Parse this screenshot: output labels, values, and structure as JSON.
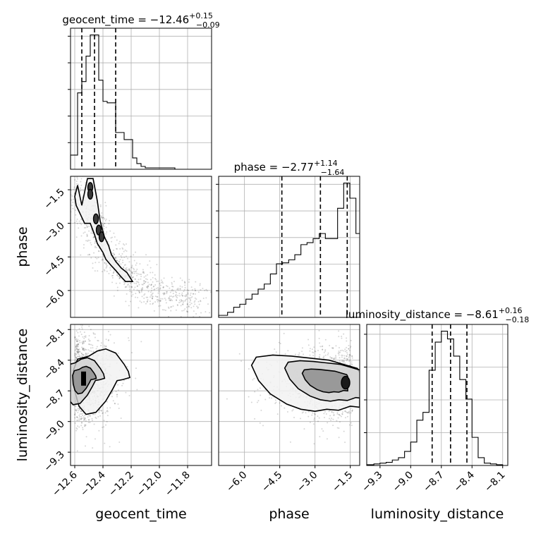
{
  "chart_data": [
    {
      "type": "histogram",
      "panel": "geocent_time",
      "title_main": "geocent_time = −12.46",
      "title_sup": "+0.15",
      "title_sub": "−0.09",
      "xlim": [
        -12.63,
        -11.63
      ],
      "xticks": [
        -12.6,
        -12.4,
        -12.2,
        -12.0,
        -11.8
      ],
      "quantiles": [
        -12.55,
        -12.46,
        -12.31
      ],
      "bin_edges": [
        -12.63,
        -12.58,
        -12.55,
        -12.52,
        -12.49,
        -12.46,
        -12.43,
        -12.4,
        -12.37,
        -12.34,
        -12.31,
        -12.28,
        -12.25,
        -12.22,
        -12.19,
        -12.16,
        -12.13,
        -12.1,
        -12.07,
        -12.04,
        -12.01,
        -11.98,
        -11.95,
        -11.92,
        -11.89,
        -11.86,
        -11.83
      ],
      "counts": [
        10,
        54,
        62,
        80,
        95,
        95,
        63,
        48,
        47,
        47,
        26,
        26,
        21,
        21,
        8,
        4,
        2,
        1,
        1,
        1,
        1,
        1,
        1,
        1,
        0,
        0
      ]
    },
    {
      "type": "scatter_contour",
      "panel": "phase_vs_geocent_time",
      "xlim": [
        -12.63,
        -11.63
      ],
      "ylim": [
        -7.2,
        -0.9
      ],
      "yticks": [
        -1.5,
        -3.0,
        -4.5,
        -6.0
      ],
      "ylabel": "phase",
      "ridge_x": [
        -12.58,
        -12.55,
        -12.5,
        -12.46,
        -12.42,
        -12.38,
        -12.33,
        -12.28,
        -12.24,
        -12.18,
        -12.1,
        -12.0,
        -11.9,
        -11.8,
        -11.7
      ],
      "ridge_y": [
        -1.4,
        -1.9,
        -2.5,
        -3.0,
        -3.6,
        -4.1,
        -4.6,
        -5.0,
        -5.3,
        -5.6,
        -5.9,
        -6.1,
        -6.3,
        -6.4,
        -6.5
      ],
      "high_density_x": [
        -12.49,
        -12.49,
        -12.45,
        -12.43,
        -12.41
      ],
      "high_density_y": [
        -1.4,
        -1.7,
        -2.8,
        -3.3,
        -3.6
      ],
      "contour_x": [
        -12.47,
        -12.44,
        -12.42,
        -12.39,
        -12.36,
        -12.34,
        -12.31,
        -12.27,
        -12.23,
        -12.19,
        -12.24,
        -12.27,
        -12.31,
        -12.34,
        -12.38,
        -12.4,
        -12.44,
        -12.46,
        -12.49,
        -12.53,
        -12.56,
        -12.59,
        -12.6,
        -12.58,
        -12.55,
        -12.51
      ],
      "contour_y": [
        -1.0,
        -2.0,
        -2.9,
        -3.6,
        -4.0,
        -4.4,
        -4.7,
        -5.0,
        -5.2,
        -5.6,
        -5.6,
        -5.4,
        -5.1,
        -4.9,
        -4.6,
        -4.3,
        -3.9,
        -3.5,
        -3.0,
        -3.0,
        -2.6,
        -2.2,
        -1.8,
        -1.3,
        -2.2,
        -1.0
      ]
    },
    {
      "type": "histogram",
      "panel": "phase",
      "title_main": "phase = −2.77",
      "title_sup": "+1.14",
      "title_sub": "−1.64",
      "xlim": [
        -7.1,
        -1.1
      ],
      "xticks": [
        -6.0,
        -4.5,
        -3.0,
        -1.5
      ],
      "quantiles": [
        -4.41,
        -2.77,
        -1.63
      ],
      "bin_edges": [
        -7.1,
        -6.72,
        -6.46,
        -6.2,
        -5.94,
        -5.68,
        -5.42,
        -5.16,
        -4.9,
        -4.64,
        -4.38,
        -4.12,
        -3.86,
        -3.6,
        -3.34,
        -3.08,
        -2.82,
        -2.56,
        -2.3,
        -2.04,
        -1.78,
        -1.52,
        -1.26,
        -1.1
      ],
      "counts": [
        2,
        5,
        10,
        13,
        18,
        23,
        28,
        33,
        43,
        53,
        54,
        57,
        62,
        72,
        74,
        78,
        83,
        78,
        78,
        108,
        133,
        118,
        83
      ]
    },
    {
      "type": "scatter_contour",
      "panel": "luminosity_distance_vs_geocent_time",
      "xlim": [
        -12.63,
        -11.63
      ],
      "ylim": [
        -9.43,
        -8.05
      ],
      "xticks": [
        -12.6,
        -12.4,
        -12.2,
        -12.0,
        -11.8
      ],
      "yticks": [
        -8.1,
        -8.4,
        -8.7,
        -9.0,
        -9.3
      ],
      "xlabel": "geocent_time",
      "ylabel": "luminosity_distance",
      "center": [
        -12.56,
        -8.58
      ],
      "spread": [
        0.12,
        0.22
      ],
      "contour_x": [
        -12.58,
        -12.5,
        -12.44,
        -12.38,
        -12.31,
        -12.25,
        -12.22,
        -12.21,
        -12.26,
        -12.3,
        -12.33,
        -12.38,
        -12.45,
        -12.52,
        -12.57,
        -12.6,
        -12.61
      ],
      "contour_y": [
        -8.39,
        -8.36,
        -8.31,
        -8.29,
        -8.33,
        -8.44,
        -8.51,
        -8.57,
        -8.59,
        -8.6,
        -8.68,
        -8.8,
        -8.91,
        -8.93,
        -8.85,
        -8.7,
        -8.5
      ]
    },
    {
      "type": "scatter_contour",
      "panel": "luminosity_distance_vs_phase",
      "xlim": [
        -7.1,
        -1.1
      ],
      "ylim": [
        -9.43,
        -8.05
      ],
      "xticks": [
        -6.0,
        -4.5,
        -3.0,
        -1.5
      ],
      "xlabel": "phase",
      "center": [
        -1.7,
        -8.62
      ],
      "spread": [
        1.6,
        0.17
      ],
      "contour_x": [
        -5.5,
        -4.8,
        -4.0,
        -3.2,
        -2.4,
        -1.8,
        -1.2,
        -1.1,
        -1.1,
        -1.5,
        -2.0,
        -2.5,
        -3.0,
        -3.6,
        -4.2,
        -4.9,
        -5.4,
        -5.7
      ],
      "contour_y": [
        -8.37,
        -8.35,
        -8.36,
        -8.38,
        -8.4,
        -8.44,
        -8.48,
        -8.52,
        -8.86,
        -8.85,
        -8.89,
        -8.88,
        -8.9,
        -8.88,
        -8.83,
        -8.73,
        -8.6,
        -8.45
      ]
    },
    {
      "type": "histogram",
      "panel": "luminosity_distance",
      "title_main": "luminosity_distance = −8.61",
      "title_sup": "+0.16",
      "title_sub": "−0.18",
      "xlim": [
        -9.43,
        -8.05
      ],
      "xticks": [
        -9.3,
        -9.0,
        -8.7,
        -8.4,
        -8.1
      ],
      "xlabel": "luminosity_distance",
      "quantiles": [
        -8.79,
        -8.61,
        -8.45
      ],
      "bin_edges": [
        -9.43,
        -9.36,
        -9.3,
        -9.24,
        -9.18,
        -9.12,
        -9.06,
        -9.0,
        -8.94,
        -8.88,
        -8.82,
        -8.76,
        -8.7,
        -8.64,
        -8.58,
        -8.52,
        -8.46,
        -8.4,
        -8.34,
        -8.28,
        -8.22,
        -8.16,
        -8.1,
        -8.05
      ],
      "counts": [
        1,
        2,
        3,
        4,
        7,
        10,
        18,
        30,
        58,
        68,
        122,
        158,
        172,
        162,
        140,
        110,
        85,
        36,
        10,
        3,
        2,
        1,
        0
      ]
    }
  ]
}
